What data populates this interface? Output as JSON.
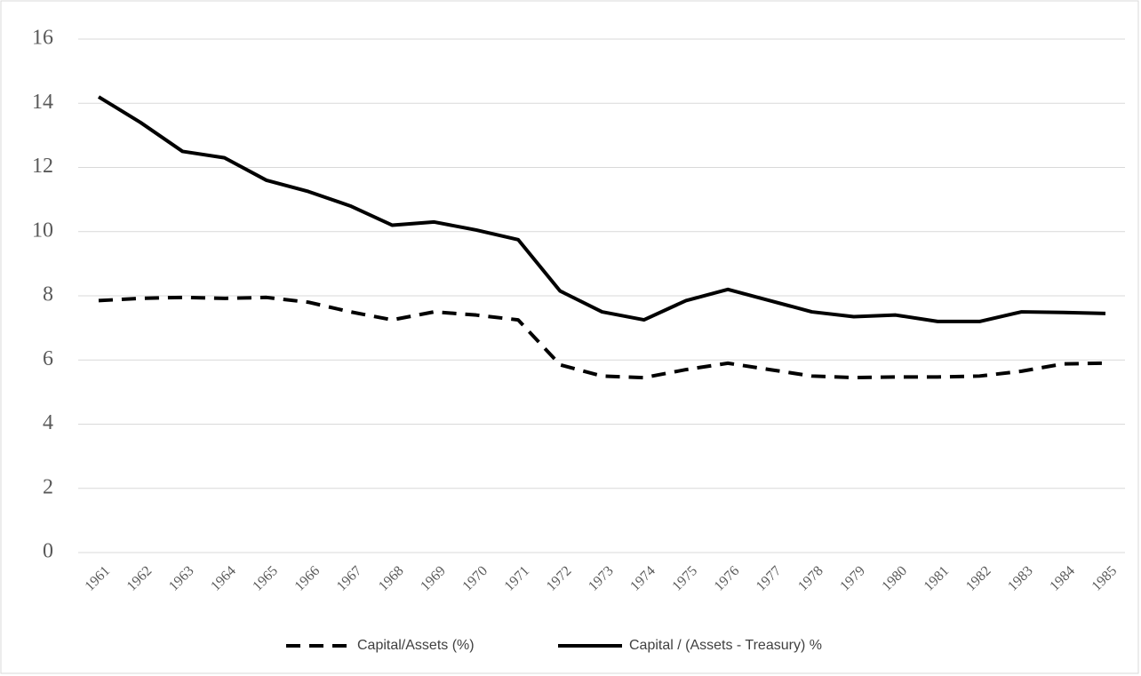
{
  "chart_data": {
    "type": "line",
    "categories": [
      "1961",
      "1962",
      "1963",
      "1964",
      "1965",
      "1966",
      "1967",
      "1968",
      "1969",
      "1970",
      "1971",
      "1972",
      "1973",
      "1974",
      "1975",
      "1976",
      "1977",
      "1978",
      "1979",
      "1980",
      "1981",
      "1982",
      "1983",
      "1984",
      "1985"
    ],
    "series": [
      {
        "name": "Capital/Assets (%)",
        "color": "#000000",
        "dashed": true,
        "values": [
          7.85,
          7.92,
          7.95,
          7.92,
          7.95,
          7.8,
          7.5,
          7.25,
          7.5,
          7.4,
          7.25,
          5.85,
          5.5,
          5.45,
          5.7,
          5.9,
          5.7,
          5.5,
          5.45,
          5.47,
          5.47,
          5.5,
          5.65,
          5.88,
          5.9
        ]
      },
      {
        "name": "Capital / (Assets - Treasury) %",
        "color": "#000000",
        "dashed": false,
        "values": [
          14.2,
          13.4,
          12.5,
          12.3,
          11.6,
          11.25,
          10.8,
          10.2,
          10.3,
          10.05,
          9.75,
          8.15,
          7.5,
          7.25,
          7.85,
          8.2,
          7.85,
          7.5,
          7.35,
          7.4,
          7.2,
          7.2,
          7.5,
          7.48,
          7.45
        ]
      }
    ],
    "ylim": [
      0,
      16
    ],
    "yticks": [
      0,
      2,
      4,
      6,
      8,
      10,
      12,
      14,
      16
    ],
    "grid": true,
    "legend": "bottom"
  }
}
